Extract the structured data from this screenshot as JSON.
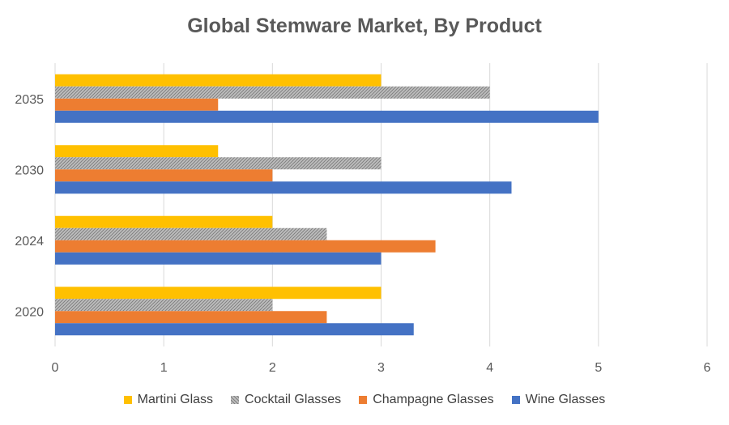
{
  "chart_data": {
    "type": "bar",
    "orientation": "horizontal",
    "title": "Global Stemware Market, By Product",
    "xlabel": "",
    "ylabel": "",
    "xlim": [
      0,
      6
    ],
    "x_ticks": [
      "0",
      "1",
      "2",
      "3",
      "4",
      "5",
      "6"
    ],
    "grid": "vertical",
    "legend_position": "bottom",
    "categories": [
      "2020",
      "2024",
      "2030",
      "2035"
    ],
    "series": [
      {
        "name": "Martini Glass",
        "color": "#FFC000",
        "pattern": "solid",
        "values": [
          3,
          2,
          1.5,
          3
        ]
      },
      {
        "name": "Cocktail Glasses",
        "color": "#A5A5A5",
        "pattern": "hatched",
        "values": [
          2,
          2.5,
          3,
          4
        ]
      },
      {
        "name": "Champagne Glasses",
        "color": "#ED7D31",
        "pattern": "solid",
        "values": [
          2.5,
          3.5,
          2,
          1.5
        ]
      },
      {
        "name": "Wine Glasses",
        "color": "#4472C4",
        "pattern": "solid",
        "values": [
          3.3,
          3,
          4.2,
          5
        ]
      }
    ]
  }
}
